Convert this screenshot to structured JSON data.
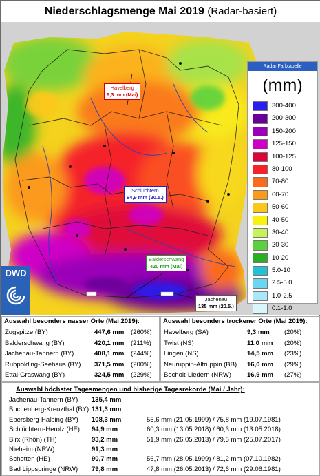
{
  "title": {
    "main": "Niederschlagsmenge Mai 2019",
    "sub": "(Radar-basiert)"
  },
  "legend": {
    "header": "Radar Farbtabelle",
    "unit": "(mm)",
    "classes": [
      {
        "label": "300-400",
        "color": "#2a1ef0"
      },
      {
        "label": "200-300",
        "color": "#6a009a"
      },
      {
        "label": "150-200",
        "color": "#9a00b8"
      },
      {
        "label": "125-150",
        "color": "#cf00c6"
      },
      {
        "label": "100-125",
        "color": "#e0003a"
      },
      {
        "label": "80-100",
        "color": "#f5222a"
      },
      {
        "label": "70-80",
        "color": "#fa6a1c"
      },
      {
        "label": "60-70",
        "color": "#fb9a1a"
      },
      {
        "label": "50-60",
        "color": "#fbc81a"
      },
      {
        "label": "40-50",
        "color": "#f8f20e"
      },
      {
        "label": "30-40",
        "color": "#c6f25a"
      },
      {
        "label": "20-30",
        "color": "#5ad240"
      },
      {
        "label": "10-20",
        "color": "#27b020"
      },
      {
        "label": "5.0-10",
        "color": "#22c2d6"
      },
      {
        "label": "2.5-5.0",
        "color": "#6ad6f2"
      },
      {
        "label": "1.0-2.5",
        "color": "#a8e8f8"
      },
      {
        "label": "0.1-1.0",
        "color": "#d8f6fc"
      }
    ]
  },
  "logo": {
    "text": "DWD"
  },
  "callouts": {
    "havelberg": {
      "name": "Havelberg",
      "value": "9,3 mm (Mai)"
    },
    "schluechtern": {
      "name": "Schlüchtern",
      "value": "94,9 mm (20.5.)"
    },
    "balderschwang": {
      "name": "Balderschwang",
      "value": "420 mm (Mai)"
    },
    "jachenau": {
      "name": "Jachenau",
      "value": "135 mm (20.5.)"
    }
  },
  "wet": {
    "title": "Auswahl besonders nasser Orte (Mai 2019):",
    "rows": [
      {
        "name": "Zugspitze (BY)",
        "value": "447,6 mm",
        "pct": "(260%)"
      },
      {
        "name": "Balderschwang (BY)",
        "value": "420,1 mm",
        "pct": "(211%)"
      },
      {
        "name": "Jachenau-Tannern (BY)",
        "value": "408,1 mm",
        "pct": "(244%)"
      },
      {
        "name": "Ruhpolding-Seehaus (BY)",
        "value": "371,5 mm",
        "pct": "(200%)"
      },
      {
        "name": "Ettal-Graswang (BY)",
        "value": "324,5 mm",
        "pct": "(229%)"
      }
    ]
  },
  "dry": {
    "title": "Auswahl besonders trockener Orte (Mai 2019):",
    "rows": [
      {
        "name": "Havelberg (SA)",
        "value": "9,3 mm",
        "pct": "(20%)"
      },
      {
        "name": "Twist (NS)",
        "value": "11,0 mm",
        "pct": "(20%)"
      },
      {
        "name": "Lingen (NS)",
        "value": "14,5 mm",
        "pct": "(23%)"
      },
      {
        "name": "Neuruppin-Altruppin (BB)",
        "value": "16,0 mm",
        "pct": "(29%)"
      },
      {
        "name": "Bocholt-Liedern (NRW)",
        "value": "16,9 mm",
        "pct": "(27%)"
      }
    ]
  },
  "records": {
    "title": "Auswahl höchster Tagesmengen und bisherige Tagesrekorde (Mai / Jahr):",
    "rows": [
      {
        "name": "Jachenau-Tannern (BY)",
        "value": "135,4 mm",
        "record": ""
      },
      {
        "name": "Buchenberg-Kreuzthal (BY)",
        "value": "131,3 mm",
        "record": ""
      },
      {
        "name": "Ebersberg-Halbing (BY)",
        "value": "108,3 mm",
        "record": "55,6 mm (21.05.1999) / 75,8 mm (19.07.1981)"
      },
      {
        "name": "Schlüchtern-Herolz (HE)",
        "value": "94,9 mm",
        "record": "60,3 mm (13.05.2018) / 60,3 mm (13.05.2018)"
      },
      {
        "name": "Birx (Rhön) (TH)",
        "value": "93,2 mm",
        "record": "51,9 mm (26.05.2013) / 79,5 mm (25.07.2017)"
      },
      {
        "name": "Nieheim (NRW)",
        "value": "91,3 mm",
        "record": ""
      },
      {
        "name": "Schotten (HE)",
        "value": "90,7 mm",
        "record": "56,7 mm (28.05.1999) / 81,2 mm (07.10.1982)"
      },
      {
        "name": "Bad Lippspringe (NRW)",
        "value": "79,8 mm",
        "record": "47,8 mm (26.05.2013) / 72,6 mm (29.06.1981)"
      }
    ]
  }
}
